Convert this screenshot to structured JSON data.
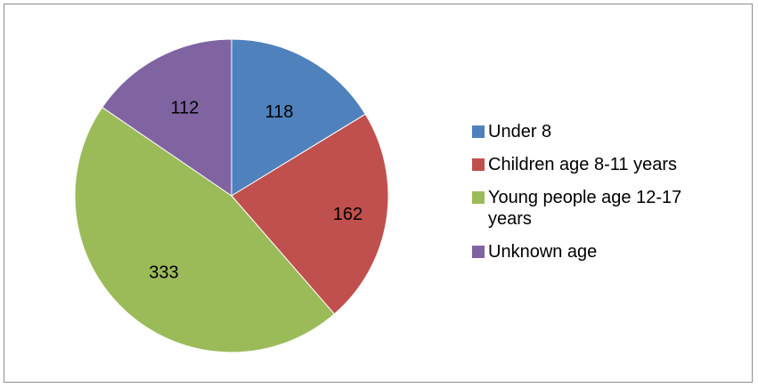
{
  "chart_data": {
    "type": "pie",
    "categories": [
      "Under 8",
      "Children age 8-11 years",
      "Young people age 12-17 years",
      "Unknown age"
    ],
    "values": [
      118,
      162,
      333,
      112
    ],
    "colors": [
      "#4f81bd",
      "#c0504d",
      "#9bbb59",
      "#8064a2"
    ],
    "data_labels": [
      "118",
      "162",
      "333",
      "112"
    ],
    "legend_placement": "right",
    "start_angle": "12 o'clock",
    "direction": "clockwise"
  },
  "legend": {
    "items": [
      {
        "label": "Under 8",
        "color": "#4f81bd"
      },
      {
        "label": "Children age 8-11 years",
        "color": "#c0504d"
      },
      {
        "label": "Young people age 12-17 years",
        "color": "#9bbb59"
      },
      {
        "label": "Unknown age",
        "color": "#8064a2"
      }
    ]
  }
}
